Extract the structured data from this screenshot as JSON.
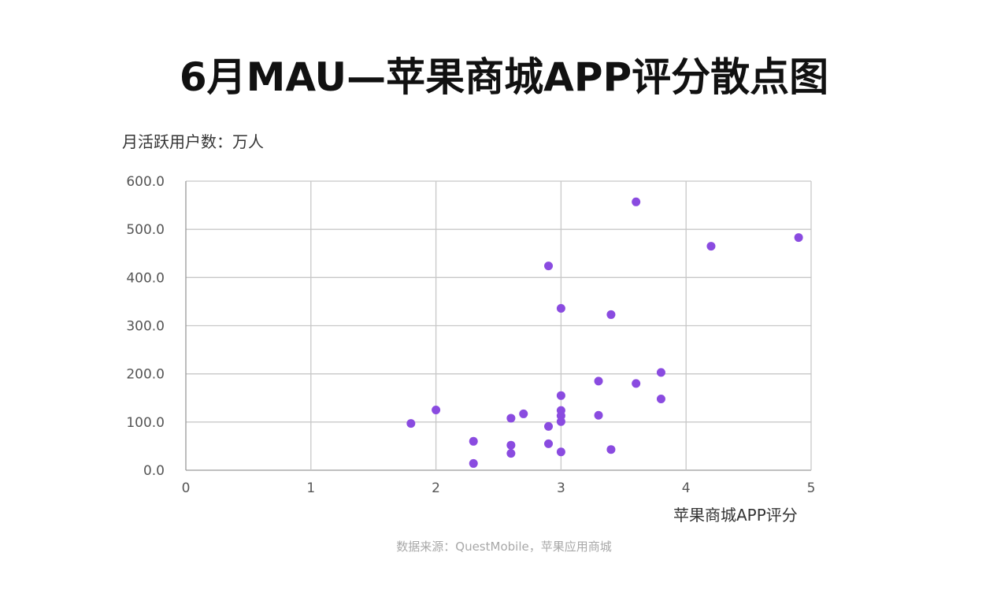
{
  "colors": {
    "point": "#8a4be0",
    "grid": "#c8c8c8",
    "axis": "#999999"
  },
  "chart_data": {
    "type": "scatter",
    "title": "6月MAU—苹果商城APP评分散点图",
    "xlabel": "苹果商城APP评分",
    "ylabel": "月活跃用户数：万人",
    "source": "数据来源：QuestMobile，苹果应用商城",
    "xlim": [
      0,
      5
    ],
    "ylim": [
      0,
      600
    ],
    "x_ticks": [
      "0",
      "1",
      "2",
      "3",
      "4",
      "5"
    ],
    "y_ticks": [
      "0.0",
      "100.0",
      "200.0",
      "300.0",
      "400.0",
      "500.0",
      "600.0"
    ],
    "grid": true,
    "points": [
      {
        "x": 1.8,
        "y": 97
      },
      {
        "x": 2.0,
        "y": 125
      },
      {
        "x": 2.3,
        "y": 60
      },
      {
        "x": 2.3,
        "y": 14
      },
      {
        "x": 2.6,
        "y": 108
      },
      {
        "x": 2.6,
        "y": 52
      },
      {
        "x": 2.6,
        "y": 35
      },
      {
        "x": 2.7,
        "y": 117
      },
      {
        "x": 2.9,
        "y": 424
      },
      {
        "x": 2.9,
        "y": 91
      },
      {
        "x": 2.9,
        "y": 55
      },
      {
        "x": 3.0,
        "y": 336
      },
      {
        "x": 3.0,
        "y": 155
      },
      {
        "x": 3.0,
        "y": 124
      },
      {
        "x": 3.0,
        "y": 113
      },
      {
        "x": 3.0,
        "y": 101
      },
      {
        "x": 3.0,
        "y": 38
      },
      {
        "x": 3.3,
        "y": 185
      },
      {
        "x": 3.3,
        "y": 114
      },
      {
        "x": 3.4,
        "y": 323
      },
      {
        "x": 3.4,
        "y": 43
      },
      {
        "x": 3.6,
        "y": 557
      },
      {
        "x": 3.6,
        "y": 180
      },
      {
        "x": 3.8,
        "y": 203
      },
      {
        "x": 3.8,
        "y": 148
      },
      {
        "x": 4.2,
        "y": 465
      },
      {
        "x": 4.9,
        "y": 483
      }
    ]
  }
}
